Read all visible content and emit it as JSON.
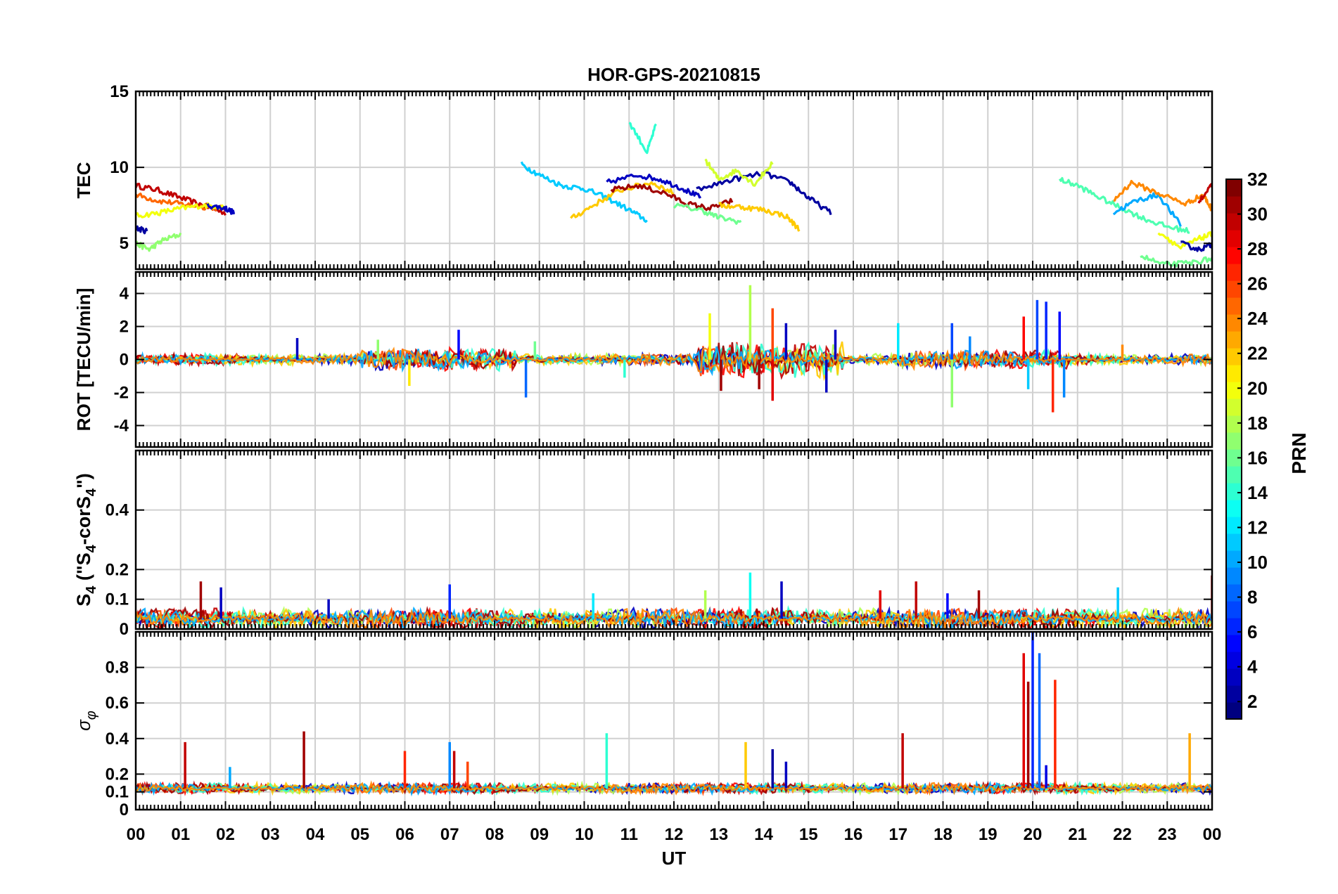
{
  "chart_data": {
    "type": "line",
    "title": "HOR-GPS-20210815",
    "xlabel": "UT",
    "x_tick_labels": [
      "00",
      "01",
      "02",
      "03",
      "04",
      "05",
      "06",
      "07",
      "08",
      "09",
      "10",
      "11",
      "12",
      "13",
      "14",
      "15",
      "16",
      "17",
      "18",
      "19",
      "20",
      "21",
      "22",
      "23",
      "00"
    ],
    "xlim": [
      0,
      24
    ],
    "colorbar": {
      "label": "PRN",
      "range": [
        1,
        32
      ],
      "tick_labels": [
        "2",
        "4",
        "6",
        "8",
        "10",
        "12",
        "14",
        "16",
        "18",
        "20",
        "22",
        "24",
        "26",
        "28",
        "30",
        "32"
      ],
      "colormap": "jet"
    },
    "panels": [
      {
        "id": "tec",
        "ylabel": "TEC",
        "ylim": [
          3.3,
          15
        ],
        "y_ticks": [
          5,
          10,
          15
        ],
        "y_tick_labels": [
          "5",
          "10",
          "15"
        ],
        "series": [
          {
            "prn": 30,
            "t": [
              0.0,
              0.5,
              1.0,
              1.5,
              2.0
            ],
            "v": [
              8.8,
              8.5,
              8.0,
              7.5,
              7.0
            ]
          },
          {
            "prn": 25,
            "t": [
              0.0,
              0.5,
              1.0,
              1.5,
              2.0
            ],
            "v": [
              8.2,
              7.8,
              7.6,
              7.4,
              7.3
            ]
          },
          {
            "prn": 20,
            "t": [
              0.0,
              0.5,
              1.0,
              1.5,
              2.0
            ],
            "v": [
              6.8,
              7.0,
              7.3,
              7.5,
              7.4
            ]
          },
          {
            "prn": 17,
            "t": [
              0.0,
              0.3,
              0.6,
              1.0
            ],
            "v": [
              5.0,
              4.6,
              5.2,
              5.6
            ]
          },
          {
            "prn": 2,
            "t": [
              0.0,
              0.25
            ],
            "v": [
              6.0,
              5.8
            ]
          },
          {
            "prn": 3,
            "t": [
              1.6,
              2.0,
              2.2
            ],
            "v": [
              7.5,
              7.3,
              7.0
            ]
          },
          {
            "prn": 11,
            "t": [
              8.6,
              9.0,
              9.5,
              10.0,
              10.5,
              11.0,
              11.4
            ],
            "v": [
              10.2,
              9.5,
              8.8,
              8.6,
              8.0,
              7.2,
              6.5
            ]
          },
          {
            "prn": 22,
            "t": [
              9.7,
              10.2,
              10.8,
              11.5,
              12.0
            ],
            "v": [
              6.6,
              7.5,
              8.5,
              9.0,
              8.3
            ]
          },
          {
            "prn": 14,
            "t": [
              11.0,
              11.4,
              11.6
            ],
            "v": [
              13.0,
              11.0,
              12.8
            ]
          },
          {
            "prn": 3,
            "t": [
              10.5,
              11.2,
              11.7,
              12.2,
              12.6
            ],
            "v": [
              9.0,
              9.5,
              9.2,
              8.6,
              8.0
            ]
          },
          {
            "prn": 31,
            "t": [
              10.6,
              11.2,
              11.8,
              12.3,
              12.8,
              13.3
            ],
            "v": [
              8.5,
              8.8,
              8.3,
              7.6,
              7.3,
              7.8
            ]
          },
          {
            "prn": 2,
            "t": [
              12.5,
              13.3,
              14.0,
              14.6,
              15.0,
              15.5
            ],
            "v": [
              8.5,
              9.2,
              9.6,
              9.0,
              8.0,
              7.0
            ]
          },
          {
            "prn": 19,
            "t": [
              12.7,
              13.0,
              13.4,
              13.8,
              14.2
            ],
            "v": [
              10.5,
              9.2,
              9.8,
              8.9,
              10.3
            ]
          },
          {
            "prn": 22,
            "t": [
              13.0,
              13.5,
              14.0,
              14.5,
              14.8
            ],
            "v": [
              7.5,
              7.4,
              7.2,
              6.8,
              5.9
            ]
          },
          {
            "prn": 16,
            "t": [
              12.0,
              12.6,
              13.0,
              13.5
            ],
            "v": [
              7.5,
              7.2,
              6.7,
              6.4
            ]
          },
          {
            "prn": 15,
            "t": [
              20.6,
              21.0,
              21.5,
              22.0,
              22.5,
              23.0,
              23.5
            ],
            "v": [
              9.2,
              8.8,
              8.0,
              7.3,
              6.6,
              6.1,
              5.8
            ]
          },
          {
            "prn": 10,
            "t": [
              21.8,
              22.3,
              22.8,
              23.3
            ],
            "v": [
              7.0,
              7.8,
              8.2,
              6.2
            ]
          },
          {
            "prn": 24,
            "t": [
              21.8,
              22.2,
              22.8,
              23.4,
              23.8,
              24.0
            ],
            "v": [
              7.8,
              9.0,
              8.3,
              7.6,
              8.2,
              7.2
            ]
          },
          {
            "prn": 20,
            "t": [
              22.8,
              23.3,
              23.7,
              24.0
            ],
            "v": [
              5.8,
              4.7,
              5.3,
              5.6
            ]
          },
          {
            "prn": 16,
            "t": [
              22.4,
              22.9,
              23.5,
              24.0
            ],
            "v": [
              4.2,
              3.6,
              3.7,
              4.0
            ]
          },
          {
            "prn": 2,
            "t": [
              23.3,
              23.7,
              24.0
            ],
            "v": [
              5.0,
              4.6,
              4.9
            ]
          },
          {
            "prn": 30,
            "t": [
              23.7,
              24.0
            ],
            "v": [
              7.8,
              8.8
            ]
          }
        ]
      },
      {
        "id": "rot",
        "ylabel": "ROT [TECU/min]",
        "ylim": [
          -5.3,
          5.3
        ],
        "y_ticks": [
          -4,
          -2,
          0,
          2,
          4
        ],
        "y_tick_labels": [
          "-4",
          "-2",
          "0",
          "2",
          "4"
        ],
        "spikes": [
          {
            "prn": 3,
            "t": 3.6,
            "v": 1.3
          },
          {
            "prn": 17,
            "t": 5.4,
            "v": 1.2
          },
          {
            "prn": 21,
            "t": 6.1,
            "v": -1.6
          },
          {
            "prn": 5,
            "t": 7.2,
            "v": 1.8
          },
          {
            "prn": 8,
            "t": 8.7,
            "v": -2.3
          },
          {
            "prn": 16,
            "t": 8.9,
            "v": 1.1
          },
          {
            "prn": 14,
            "t": 10.9,
            "v": -1.1
          },
          {
            "prn": 20,
            "t": 12.8,
            "v": 2.8
          },
          {
            "prn": 18,
            "t": 13.7,
            "v": 4.5
          },
          {
            "prn": 31,
            "t": 13.05,
            "v": -1.9
          },
          {
            "prn": 31,
            "t": 13.9,
            "v": -1.8
          },
          {
            "prn": 26,
            "t": 14.2,
            "v": 3.1
          },
          {
            "prn": 29,
            "t": 14.2,
            "v": -2.5
          },
          {
            "prn": 3,
            "t": 14.5,
            "v": 2.2
          },
          {
            "prn": 3,
            "t": 15.4,
            "v": -2.0
          },
          {
            "prn": 3,
            "t": 15.6,
            "v": 1.8
          },
          {
            "prn": 12,
            "t": 17.0,
            "v": 2.2
          },
          {
            "prn": 7,
            "t": 18.2,
            "v": 2.2
          },
          {
            "prn": 17,
            "t": 18.2,
            "v": -2.9
          },
          {
            "prn": 9,
            "t": 18.6,
            "v": 1.4
          },
          {
            "prn": 28,
            "t": 19.8,
            "v": 2.6
          },
          {
            "prn": 7,
            "t": 20.1,
            "v": 3.6
          },
          {
            "prn": 6,
            "t": 20.3,
            "v": 3.5
          },
          {
            "prn": 27,
            "t": 20.45,
            "v": -3.2
          },
          {
            "prn": 5,
            "t": 20.6,
            "v": 2.9
          },
          {
            "prn": 9,
            "t": 20.7,
            "v": -2.3
          },
          {
            "prn": 11,
            "t": 19.9,
            "v": -1.8
          },
          {
            "prn": 24,
            "t": 22.0,
            "v": 0.9
          }
        ]
      },
      {
        "id": "s4",
        "ylabel": "S4 (\"S4-corS4\")",
        "ylim": [
          0,
          0.6
        ],
        "y_ticks": [
          0,
          0.1,
          0.2,
          0.4
        ],
        "y_tick_labels": [
          "0",
          "0.1",
          "0.2",
          "0.4"
        ],
        "spikes": [
          {
            "prn": 31,
            "t": 1.45,
            "v": 0.16
          },
          {
            "prn": 3,
            "t": 1.9,
            "v": 0.14
          },
          {
            "prn": 3,
            "t": 4.3,
            "v": 0.1
          },
          {
            "prn": 6,
            "t": 7.0,
            "v": 0.15
          },
          {
            "prn": 12,
            "t": 10.2,
            "v": 0.12
          },
          {
            "prn": 18,
            "t": 12.7,
            "v": 0.13
          },
          {
            "prn": 13,
            "t": 13.7,
            "v": 0.19
          },
          {
            "prn": 3,
            "t": 14.4,
            "v": 0.16
          },
          {
            "prn": 29,
            "t": 16.6,
            "v": 0.13
          },
          {
            "prn": 30,
            "t": 17.4,
            "v": 0.16
          },
          {
            "prn": 5,
            "t": 18.1,
            "v": 0.12
          },
          {
            "prn": 31,
            "t": 18.8,
            "v": 0.13
          },
          {
            "prn": 11,
            "t": 21.9,
            "v": 0.14
          },
          {
            "prn": 31,
            "t": 24.0,
            "v": 0.18
          }
        ]
      },
      {
        "id": "sigma",
        "ylabel": "σφ",
        "ylim": [
          0,
          1.0
        ],
        "y_ticks": [
          0,
          0.1,
          0.2,
          0.4,
          0.6,
          0.8
        ],
        "y_tick_labels": [
          "0",
          "0.1",
          "0.2",
          "0.4",
          "0.6",
          "0.8"
        ],
        "spikes": [
          {
            "prn": 30,
            "t": 1.1,
            "v": 0.38
          },
          {
            "prn": 10,
            "t": 2.1,
            "v": 0.24
          },
          {
            "prn": 31,
            "t": 3.75,
            "v": 0.44
          },
          {
            "prn": 27,
            "t": 6.0,
            "v": 0.33
          },
          {
            "prn": 9,
            "t": 7.0,
            "v": 0.38
          },
          {
            "prn": 30,
            "t": 7.1,
            "v": 0.33
          },
          {
            "prn": 26,
            "t": 7.4,
            "v": 0.27
          },
          {
            "prn": 14,
            "t": 10.5,
            "v": 0.43
          },
          {
            "prn": 22,
            "t": 13.6,
            "v": 0.38
          },
          {
            "prn": 2,
            "t": 14.2,
            "v": 0.34
          },
          {
            "prn": 3,
            "t": 14.5,
            "v": 0.27
          },
          {
            "prn": 30,
            "t": 17.1,
            "v": 0.43
          },
          {
            "prn": 29,
            "t": 19.8,
            "v": 0.88
          },
          {
            "prn": 31,
            "t": 19.9,
            "v": 0.72
          },
          {
            "prn": 6,
            "t": 20.0,
            "v": 1.0
          },
          {
            "prn": 8,
            "t": 20.15,
            "v": 0.88
          },
          {
            "prn": 4,
            "t": 20.3,
            "v": 0.25
          },
          {
            "prn": 27,
            "t": 20.5,
            "v": 0.73
          },
          {
            "prn": 23,
            "t": 23.5,
            "v": 0.43
          }
        ]
      }
    ]
  }
}
